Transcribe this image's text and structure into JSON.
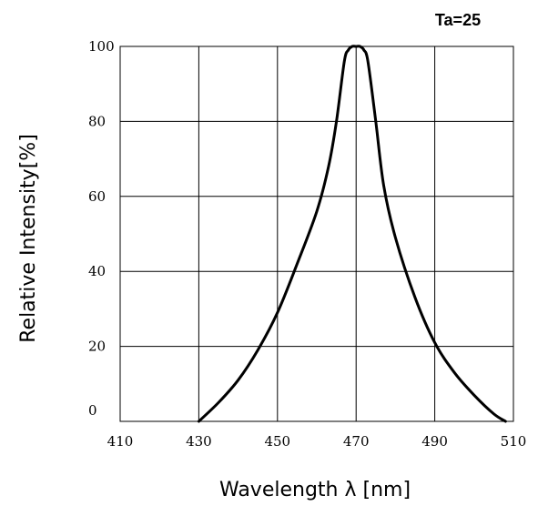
{
  "chart_data": {
    "type": "line",
    "annotation": "Ta=25",
    "xlabel": "Wavelength  λ  [nm]",
    "ylabel": "Relative Intensity[%]",
    "xlim": [
      410,
      510
    ],
    "ylim": [
      0,
      100
    ],
    "x_ticks": [
      "410",
      "430",
      "450",
      "470",
      "490",
      "510"
    ],
    "y_ticks": [
      "0",
      "20",
      "40",
      "60",
      "80",
      "100"
    ],
    "grid": true,
    "series": [
      {
        "color": "#000000",
        "x": [
          430,
          435,
          440,
          445,
          450,
          455,
          460,
          463,
          465,
          467,
          468,
          469,
          470,
          471,
          472,
          473,
          475,
          477,
          480,
          485,
          490,
          495,
          500,
          505,
          508
        ],
        "y": [
          0,
          5,
          11,
          19,
          29,
          42,
          56,
          68,
          80,
          96,
          99,
          100,
          100,
          100,
          99,
          96,
          80,
          63,
          49,
          33,
          21,
          13,
          7,
          2,
          0
        ]
      }
    ]
  }
}
